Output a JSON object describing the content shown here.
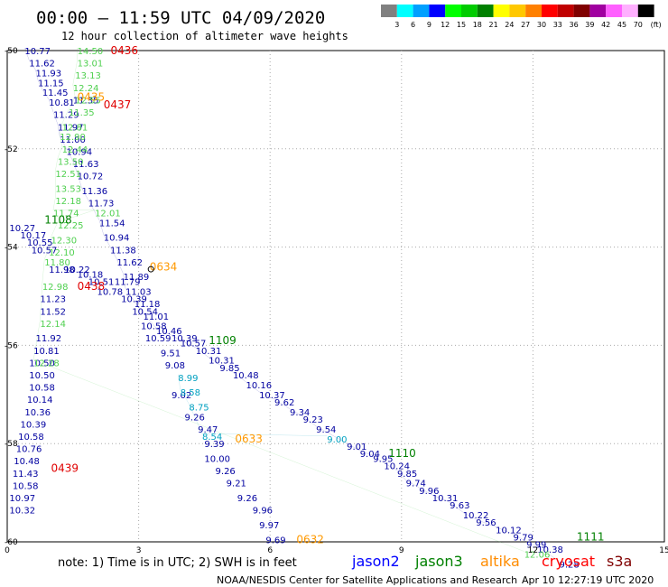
{
  "header": {
    "title": "00:00 – 11:59 UTC 04/09/2020",
    "subtitle": "12 hour collection of altimeter wave heights"
  },
  "color_legend": {
    "unit": "(ft)",
    "bins": [
      {
        "color": "#808080",
        "label": "3"
      },
      {
        "color": "#00ffff",
        "label": "6"
      },
      {
        "color": "#00a0ff",
        "label": "9"
      },
      {
        "color": "#0000ff",
        "label": "12"
      },
      {
        "color": "#00ff00",
        "label": "15"
      },
      {
        "color": "#00cc00",
        "label": "18"
      },
      {
        "color": "#008000",
        "label": "21"
      },
      {
        "color": "#ffff00",
        "label": "24"
      },
      {
        "color": "#ffc800",
        "label": "27"
      },
      {
        "color": "#ff8000",
        "label": "30"
      },
      {
        "color": "#ff0000",
        "label": "33"
      },
      {
        "color": "#c00000",
        "label": "36"
      },
      {
        "color": "#800000",
        "label": "39"
      },
      {
        "color": "#a000a0",
        "label": "42"
      },
      {
        "color": "#ff60ff",
        "label": "45"
      },
      {
        "color": "#ffb0ff",
        "label": "70"
      },
      {
        "color": "#000000",
        "label": ""
      }
    ]
  },
  "footer": {
    "note": "note:  1) Time is in UTC;  2) SWH is in feet",
    "satellites": [
      {
        "name": "jason2",
        "color": "#0000ff"
      },
      {
        "name": "jason3",
        "color": "#008000"
      },
      {
        "name": "altika",
        "color": "#ff8c00"
      },
      {
        "name": "cryosat",
        "color": "#ff0000"
      },
      {
        "name": "s3a",
        "color": "#800000"
      }
    ],
    "credit": "NOAA/NESDIS Center for Satellite Applications and Research",
    "timestamp": "Apr 10 12:27:19 UTC 2020"
  },
  "colors": {
    "jason2_line": "#0000a0",
    "jason3_line": "#60d060",
    "altika": "#00a0c0"
  },
  "chart_data": {
    "type": "scatter",
    "xlim": [
      0,
      15
    ],
    "ylim": [
      -60,
      -50
    ],
    "grid": true,
    "x_ticks": [
      "0",
      "3",
      "6",
      "9",
      "12",
      "15"
    ],
    "y_ticks": [
      "-50",
      "-52",
      "-54",
      "-56",
      "-58",
      "-60"
    ],
    "pass_labels": [
      {
        "text": "0436",
        "x": 2.36,
        "y": -50.0,
        "color": "#e00000"
      },
      {
        "text": "0437",
        "x": 2.2,
        "y": -51.1,
        "color": "#e00000"
      },
      {
        "text": "0435",
        "x": 1.6,
        "y": -50.95,
        "color": "#ff9900"
      },
      {
        "text": "1108",
        "x": 0.85,
        "y": -53.45,
        "color": "#008000"
      },
      {
        "text": "0634",
        "x": 3.25,
        "y": -54.4,
        "color": "#ff9900"
      },
      {
        "text": "0438",
        "x": 1.6,
        "y": -54.8,
        "color": "#e00000"
      },
      {
        "text": "1109",
        "x": 4.6,
        "y": -55.9,
        "color": "#008000"
      },
      {
        "text": "0633",
        "x": 5.2,
        "y": -57.9,
        "color": "#ff9900"
      },
      {
        "text": "0439",
        "x": 1.0,
        "y": -58.5,
        "color": "#e00000"
      },
      {
        "text": "1110",
        "x": 8.7,
        "y": -58.2,
        "color": "#008000"
      },
      {
        "text": "0632",
        "x": 6.6,
        "y": -59.95,
        "color": "#ff9900"
      },
      {
        "text": "1111",
        "x": 13.0,
        "y": -59.9,
        "color": "#008000"
      }
    ],
    "series": [
      {
        "name": "jason2",
        "color": "#0000a0",
        "points": [
          {
            "x": 0.4,
            "y": -50.0,
            "v": "10.77"
          },
          {
            "x": 0.5,
            "y": -50.25,
            "v": "11.62"
          },
          {
            "x": 0.65,
            "y": -50.45,
            "v": "11.93"
          },
          {
            "x": 0.7,
            "y": -50.65,
            "v": "11.15"
          },
          {
            "x": 0.8,
            "y": -50.85,
            "v": "11.45"
          },
          {
            "x": 0.95,
            "y": -51.05,
            "v": "10.81"
          },
          {
            "x": 1.05,
            "y": -51.3,
            "v": "11.29"
          },
          {
            "x": 1.15,
            "y": -51.55,
            "v": "11.97"
          },
          {
            "x": 1.2,
            "y": -51.8,
            "v": "11.00"
          },
          {
            "x": 1.35,
            "y": -52.05,
            "v": "10.94"
          },
          {
            "x": 1.5,
            "y": -52.3,
            "v": "11.63"
          },
          {
            "x": 1.6,
            "y": -52.55,
            "v": "10.72"
          },
          {
            "x": 1.7,
            "y": -52.85,
            "v": "11.36"
          },
          {
            "x": 1.85,
            "y": -53.1,
            "v": "11.73"
          },
          {
            "x": 2.1,
            "y": -53.5,
            "v": "11.54"
          },
          {
            "x": 2.2,
            "y": -53.8,
            "v": "10.94"
          },
          {
            "x": 2.35,
            "y": -54.05,
            "v": "11.38"
          },
          {
            "x": 2.5,
            "y": -54.3,
            "v": "11.62"
          },
          {
            "x": 2.65,
            "y": -54.6,
            "v": "11.89"
          },
          {
            "x": 2.7,
            "y": -54.9,
            "v": "11.03"
          },
          {
            "x": 2.9,
            "y": -55.15,
            "v": "11.18"
          },
          {
            "x": 3.1,
            "y": -55.4,
            "v": "11.01"
          },
          {
            "x": 3.4,
            "y": -55.7,
            "v": "10.46"
          },
          {
            "x": 3.75,
            "y": -55.85,
            "v": "10.39"
          },
          {
            "x": 3.95,
            "y": -55.95,
            "v": "10.57"
          },
          {
            "x": 4.3,
            "y": -56.1,
            "v": "10.31"
          },
          {
            "x": 4.6,
            "y": -56.3,
            "v": "10.31"
          },
          {
            "x": 4.85,
            "y": -56.45,
            "v": "9.85"
          },
          {
            "x": 5.15,
            "y": -56.6,
            "v": "10.48"
          },
          {
            "x": 5.45,
            "y": -56.8,
            "v": "10.16"
          },
          {
            "x": 5.75,
            "y": -57.0,
            "v": "10.37"
          },
          {
            "x": 6.1,
            "y": -57.15,
            "v": "9.62"
          },
          {
            "x": 6.45,
            "y": -57.35,
            "v": "9.34"
          },
          {
            "x": 6.75,
            "y": -57.5,
            "v": "9.23"
          },
          {
            "x": 7.05,
            "y": -57.7,
            "v": "9.54"
          },
          {
            "x": 7.75,
            "y": -58.05,
            "v": "9.01"
          },
          {
            "x": 8.05,
            "y": -58.2,
            "v": "9.04"
          },
          {
            "x": 8.35,
            "y": -58.3,
            "v": "9.95"
          },
          {
            "x": 8.6,
            "y": -58.45,
            "v": "10.24"
          },
          {
            "x": 8.9,
            "y": -58.6,
            "v": "9.85"
          },
          {
            "x": 9.1,
            "y": -58.8,
            "v": "9.74"
          },
          {
            "x": 9.4,
            "y": -58.95,
            "v": "9.96"
          },
          {
            "x": 9.7,
            "y": -59.1,
            "v": "10.31"
          },
          {
            "x": 10.1,
            "y": -59.25,
            "v": "9.63"
          },
          {
            "x": 10.4,
            "y": -59.45,
            "v": "10.22"
          },
          {
            "x": 10.7,
            "y": -59.6,
            "v": "9.56"
          },
          {
            "x": 11.15,
            "y": -59.75,
            "v": "10.12"
          },
          {
            "x": 11.55,
            "y": -59.9,
            "v": "9.79"
          },
          {
            "x": 11.85,
            "y": -60.05,
            "v": "9.99"
          },
          {
            "x": 12.1,
            "y": -60.15,
            "v": "10.38"
          },
          {
            "x": 12.6,
            "y": -60.45,
            "v": "9.28"
          },
          {
            "x": 2.45,
            "y": -54.7,
            "v": "11.79"
          },
          {
            "x": 2.6,
            "y": -55.05,
            "v": "10.39"
          },
          {
            "x": 2.85,
            "y": -55.3,
            "v": "10.54"
          },
          {
            "x": 3.05,
            "y": -55.6,
            "v": "10.58"
          },
          {
            "x": 3.15,
            "y": -55.85,
            "v": "10.59"
          },
          {
            "x": 3.5,
            "y": -56.15,
            "v": "9.51"
          },
          {
            "x": 3.6,
            "y": -56.4,
            "v": "9.08"
          },
          {
            "x": 3.75,
            "y": -57.0,
            "v": "9.02"
          },
          {
            "x": 4.05,
            "y": -57.45,
            "v": "9.26"
          },
          {
            "x": 4.35,
            "y": -57.7,
            "v": "9.47"
          },
          {
            "x": 4.5,
            "y": -58.0,
            "v": "9.39"
          },
          {
            "x": 4.5,
            "y": -58.3,
            "v": "10.00"
          },
          {
            "x": 4.75,
            "y": -58.55,
            "v": "9.26"
          },
          {
            "x": 5.0,
            "y": -58.8,
            "v": "9.21"
          },
          {
            "x": 5.25,
            "y": -59.1,
            "v": "9.26"
          },
          {
            "x": 5.6,
            "y": -59.35,
            "v": "9.96"
          },
          {
            "x": 5.75,
            "y": -59.65,
            "v": "9.97"
          },
          {
            "x": 5.9,
            "y": -59.95,
            "v": "9.69"
          },
          {
            "x": 0.5,
            "y": -56.35,
            "v": "10.50"
          },
          {
            "x": 0.5,
            "y": -56.6,
            "v": "10.50"
          },
          {
            "x": 0.5,
            "y": -56.85,
            "v": "10.58"
          },
          {
            "x": 0.45,
            "y": -57.1,
            "v": "10.14"
          },
          {
            "x": 0.4,
            "y": -57.35,
            "v": "10.36"
          },
          {
            "x": 0.3,
            "y": -57.6,
            "v": "10.39"
          },
          {
            "x": 0.25,
            "y": -57.85,
            "v": "10.58"
          },
          {
            "x": 0.2,
            "y": -58.1,
            "v": "10.76"
          },
          {
            "x": 0.15,
            "y": -58.35,
            "v": "10.48"
          },
          {
            "x": 0.12,
            "y": -58.6,
            "v": "11.43"
          },
          {
            "x": 0.12,
            "y": -58.85,
            "v": "10.58"
          },
          {
            "x": 0.05,
            "y": -59.1,
            "v": "10.97"
          },
          {
            "x": 0.05,
            "y": -59.35,
            "v": "10.32"
          },
          {
            "x": 0.05,
            "y": -53.6,
            "v": "10.27"
          },
          {
            "x": 0.3,
            "y": -53.75,
            "v": "10.17"
          },
          {
            "x": 0.45,
            "y": -53.9,
            "v": "10.55"
          },
          {
            "x": 0.55,
            "y": -54.05,
            "v": "10.57"
          },
          {
            "x": 0.95,
            "y": -54.45,
            "v": "11.98"
          },
          {
            "x": 0.75,
            "y": -55.05,
            "v": "11.23"
          },
          {
            "x": 0.75,
            "y": -55.3,
            "v": "11.52"
          },
          {
            "x": 0.65,
            "y": -55.85,
            "v": "11.92"
          },
          {
            "x": 0.6,
            "y": -56.1,
            "v": "10.81"
          },
          {
            "x": 1.3,
            "y": -54.45,
            "v": "10.22"
          },
          {
            "x": 1.6,
            "y": -54.55,
            "v": "10.18"
          },
          {
            "x": 1.85,
            "y": -54.7,
            "v": "10.51"
          },
          {
            "x": 2.05,
            "y": -54.9,
            "v": "10.78"
          },
          {
            "x": 1.5,
            "y": -51.0,
            "v": "11.35"
          }
        ]
      },
      {
        "name": "jason3",
        "color": "#50d050",
        "points": [
          {
            "x": 1.6,
            "y": -50.0,
            "v": "14.50"
          },
          {
            "x": 1.6,
            "y": -50.25,
            "v": "13.01"
          },
          {
            "x": 1.55,
            "y": -50.5,
            "v": "13.13"
          },
          {
            "x": 1.5,
            "y": -50.75,
            "v": "12.24"
          },
          {
            "x": 1.55,
            "y": -51.0,
            "v": "12.55"
          },
          {
            "x": 1.4,
            "y": -51.25,
            "v": "11.35"
          },
          {
            "x": 1.25,
            "y": -51.55,
            "v": "12.81"
          },
          {
            "x": 1.2,
            "y": -51.75,
            "v": "12.90"
          },
          {
            "x": 1.25,
            "y": -52.0,
            "v": "12.44"
          },
          {
            "x": 1.15,
            "y": -52.25,
            "v": "13.50"
          },
          {
            "x": 1.1,
            "y": -52.5,
            "v": "12.51"
          },
          {
            "x": 1.1,
            "y": -52.8,
            "v": "13.53"
          },
          {
            "x": 1.1,
            "y": -53.05,
            "v": "12.18"
          },
          {
            "x": 1.05,
            "y": -53.3,
            "v": "11.74"
          },
          {
            "x": 1.15,
            "y": -53.55,
            "v": "12.25"
          },
          {
            "x": 1.0,
            "y": -53.85,
            "v": "12.30"
          },
          {
            "x": 0.95,
            "y": -54.1,
            "v": "12.10"
          },
          {
            "x": 0.85,
            "y": -54.3,
            "v": "11.80"
          },
          {
            "x": 0.8,
            "y": -54.8,
            "v": "12.98"
          },
          {
            "x": 0.75,
            "y": -55.55,
            "v": "12.14"
          },
          {
            "x": 0.6,
            "y": -56.35,
            "v": "12.28"
          },
          {
            "x": 2.0,
            "y": -53.3,
            "v": "12.01"
          },
          {
            "x": 11.8,
            "y": -60.25,
            "v": "12.06"
          }
        ]
      },
      {
        "name": "altika",
        "color": "#00a0c0",
        "points": [
          {
            "x": 3.9,
            "y": -56.65,
            "v": "8.99"
          },
          {
            "x": 3.95,
            "y": -56.95,
            "v": "8.58"
          },
          {
            "x": 4.15,
            "y": -57.25,
            "v": "8.75"
          },
          {
            "x": 4.45,
            "y": -57.85,
            "v": "8.54"
          },
          {
            "x": 7.3,
            "y": -57.9,
            "v": "9.00"
          }
        ]
      }
    ]
  }
}
